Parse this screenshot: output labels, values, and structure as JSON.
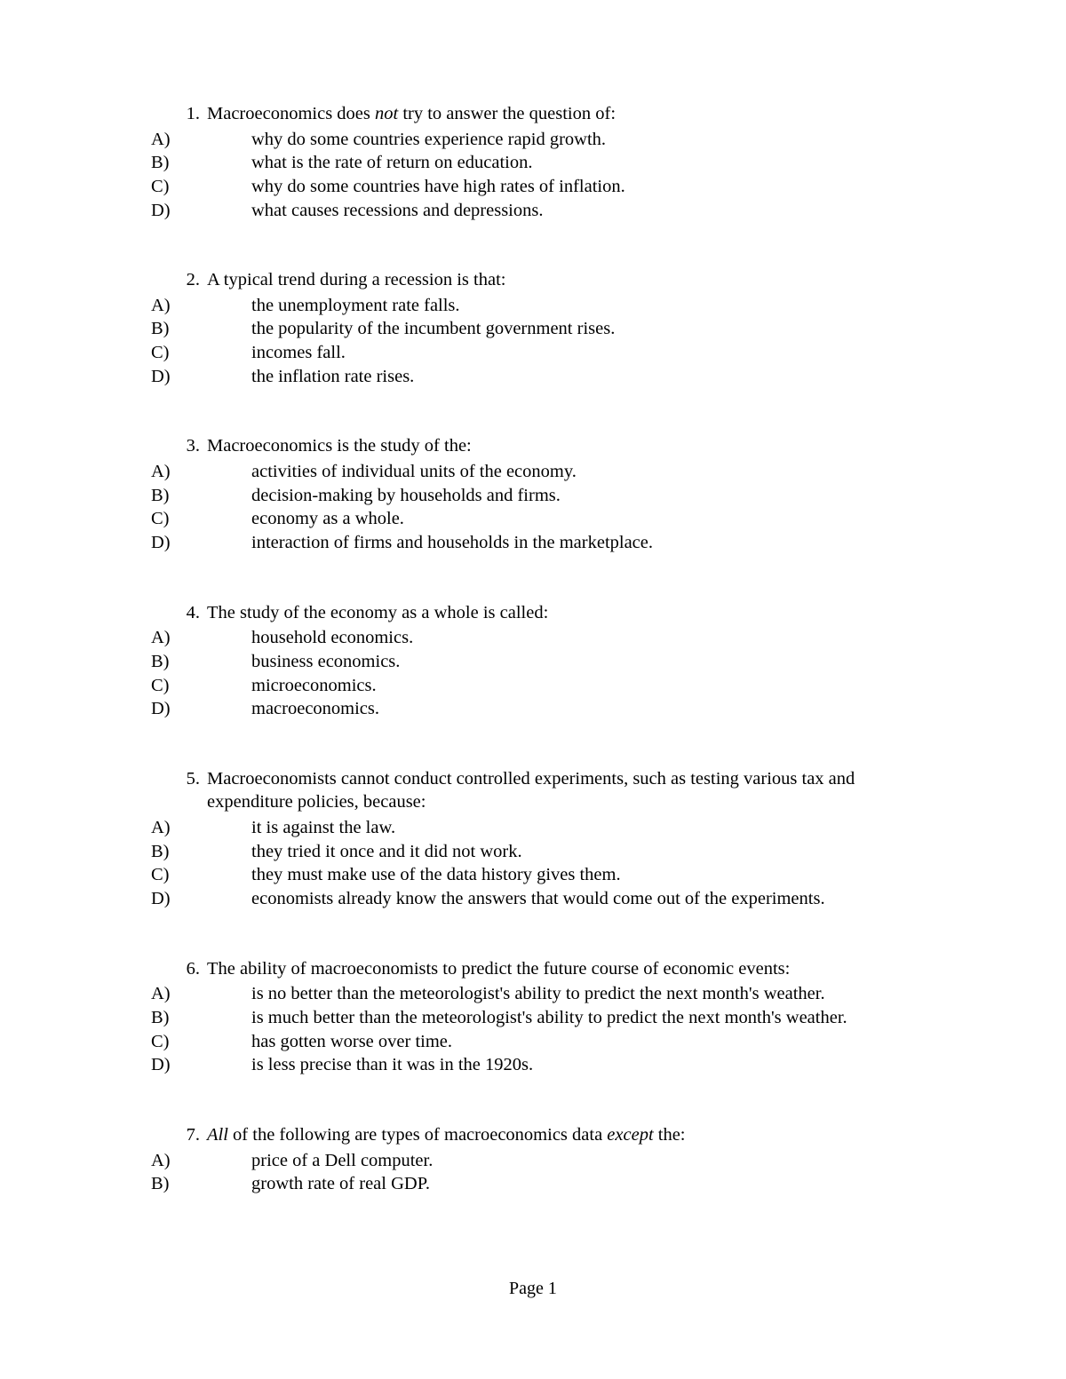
{
  "page": {
    "footer": "Page 1",
    "font_family": "Times New Roman",
    "font_size_pt": 15,
    "text_color": "#000000",
    "background_color": "#ffffff"
  },
  "questions": [
    {
      "number": "1.",
      "stem_pre": "Macroeconomics does ",
      "stem_italic": "not",
      "stem_post": " try to answer the question of:",
      "options": [
        {
          "label": "A)",
          "text": "why do some countries experience rapid growth."
        },
        {
          "label": "B)",
          "text": "what is the rate of return on education."
        },
        {
          "label": "C)",
          "text": "why do some countries have high rates of inflation."
        },
        {
          "label": "D)",
          "text": "what causes recessions and depressions."
        }
      ]
    },
    {
      "number": "2.",
      "stem_pre": "A typical trend during a recession is that:",
      "stem_italic": "",
      "stem_post": "",
      "options": [
        {
          "label": "A)",
          "text": "the unemployment rate falls."
        },
        {
          "label": "B)",
          "text": "the popularity of the incumbent government rises."
        },
        {
          "label": "C)",
          "text": "incomes fall."
        },
        {
          "label": "D)",
          "text": "the inflation rate rises."
        }
      ]
    },
    {
      "number": "3.",
      "stem_pre": "Macroeconomics is the study of the:",
      "stem_italic": "",
      "stem_post": "",
      "options": [
        {
          "label": "A)",
          "text": "activities of individual units of the economy."
        },
        {
          "label": "B)",
          "text": "decision-making by households and firms."
        },
        {
          "label": "C)",
          "text": "economy as a whole."
        },
        {
          "label": "D)",
          "text": "interaction of firms and households in the marketplace."
        }
      ]
    },
    {
      "number": "4.",
      "stem_pre": "The study of the economy as a whole is called:",
      "stem_italic": "",
      "stem_post": "",
      "options": [
        {
          "label": "A)",
          "text": "household economics."
        },
        {
          "label": "B)",
          "text": "business economics."
        },
        {
          "label": "C)",
          "text": "microeconomics."
        },
        {
          "label": "D)",
          "text": "macroeconomics."
        }
      ]
    },
    {
      "number": "5.",
      "stem_pre": "Macroeconomists cannot conduct controlled experiments, such as testing various tax and expenditure policies, because:",
      "stem_italic": "",
      "stem_post": "",
      "options": [
        {
          "label": "A)",
          "text": "it is against the law."
        },
        {
          "label": "B)",
          "text": "they tried it once and it did not work."
        },
        {
          "label": "C)",
          "text": "they must make use of the data history gives them."
        },
        {
          "label": "D)",
          "text": "economists already know the answers that would come out of the experiments."
        }
      ]
    },
    {
      "number": "6.",
      "stem_pre": "The ability of macroeconomists to predict the future course of economic events:",
      "stem_italic": "",
      "stem_post": "",
      "options": [
        {
          "label": "A)",
          "text": "is no better than the meteorologist's ability to predict the next month's weather."
        },
        {
          "label": "B)",
          "text": "is much better than the meteorologist's ability to predict the next month's weather."
        },
        {
          "label": "C)",
          "text": "has gotten worse over time."
        },
        {
          "label": "D)",
          "text": "is less precise than it was in the 1920s."
        }
      ]
    },
    {
      "number": "7.",
      "stem_pre": "",
      "stem_italic": "All",
      "stem_post": " of the following are types of macroeconomics data ",
      "stem_italic2": "except",
      "stem_post2": " the:",
      "options": [
        {
          "label": "A)",
          "text": "price of a Dell computer."
        },
        {
          "label": "B)",
          "text": "growth rate of real GDP."
        }
      ]
    }
  ]
}
